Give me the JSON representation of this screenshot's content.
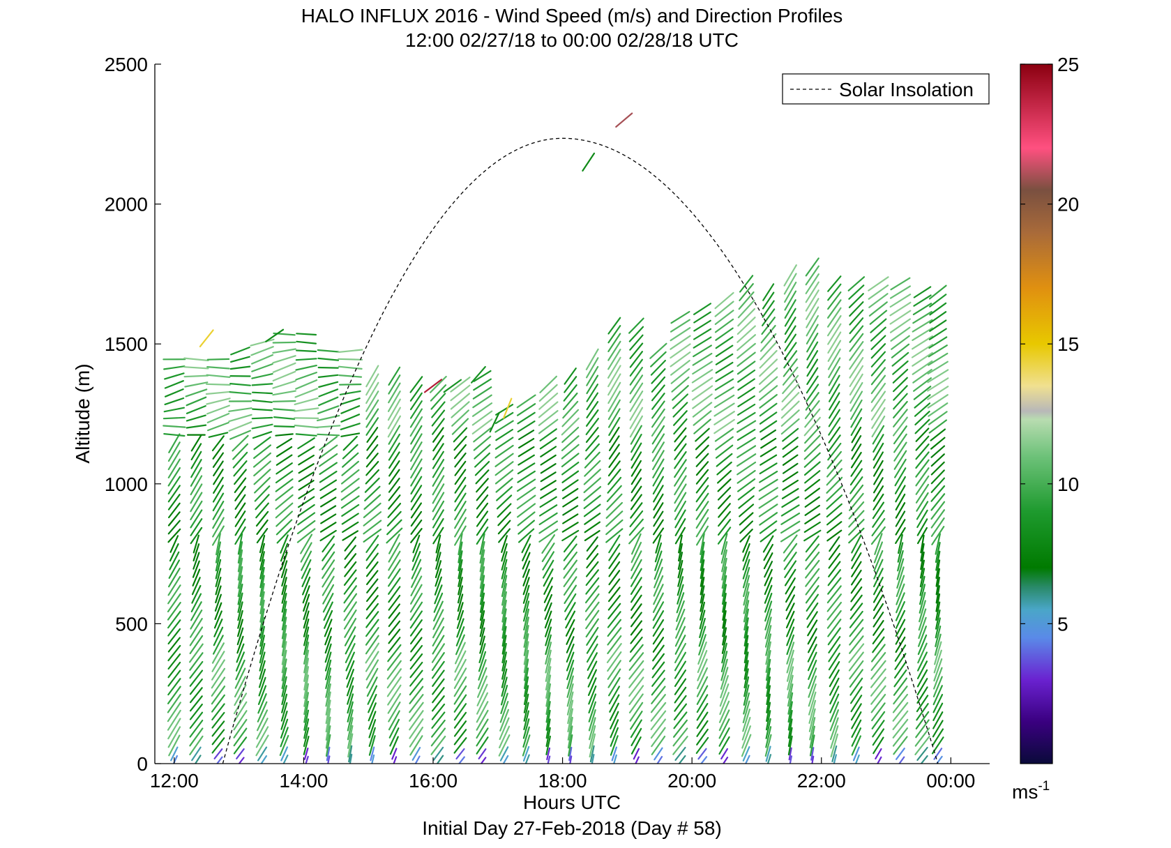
{
  "chart_data": {
    "type": "scatter",
    "title": "HALO INFLUX 2016 - Wind Speed (m/s) and Direction Profiles",
    "subtitle": "12:00 02/27/18 to 00:00 02/28/18  UTC",
    "xlabel": "Hours UTC",
    "footer": "Initial Day 27-Feb-2018 (Day # 58)",
    "ylabel": "Altitude (m)",
    "xlim": [
      11.7,
      24.6
    ],
    "ylim": [
      0,
      2500
    ],
    "x_tick_values": [
      12,
      14,
      16,
      18,
      20,
      22,
      24
    ],
    "x_tick_labels": [
      "12:00",
      "14:00",
      "16:00",
      "18:00",
      "20:00",
      "22:00",
      "00:00"
    ],
    "y_tick_values": [
      0,
      500,
      1000,
      1500,
      2000,
      2500
    ],
    "y_tick_labels": [
      "0",
      "500",
      "1000",
      "1500",
      "2000",
      "2500"
    ],
    "colorbar": {
      "min": 0,
      "max": 25,
      "tick_values": [
        5,
        10,
        15,
        20,
        25
      ],
      "tick_labels": [
        "5",
        "10",
        "15",
        "20",
        "25"
      ],
      "unit_label": "ms",
      "unit_exponent": "-1",
      "stops": [
        {
          "v": 0,
          "color": "#0a0a3a"
        },
        {
          "v": 1.5,
          "color": "#3a0080"
        },
        {
          "v": 3,
          "color": "#6a22d0"
        },
        {
          "v": 4.5,
          "color": "#5a8ae8"
        },
        {
          "v": 5.5,
          "color": "#4aa6c8"
        },
        {
          "v": 6.3,
          "color": "#2a8a6a"
        },
        {
          "v": 7,
          "color": "#007a00"
        },
        {
          "v": 9,
          "color": "#1e9a2e"
        },
        {
          "v": 11,
          "color": "#6ec27a"
        },
        {
          "v": 12.3,
          "color": "#b8dcb0"
        },
        {
          "v": 12.6,
          "color": "#b8b8b8"
        },
        {
          "v": 13.5,
          "color": "#f0e090"
        },
        {
          "v": 15,
          "color": "#e8c800"
        },
        {
          "v": 17,
          "color": "#e09010"
        },
        {
          "v": 19,
          "color": "#a86a3a"
        },
        {
          "v": 20.5,
          "color": "#7a5040"
        },
        {
          "v": 22,
          "color": "#ff5080"
        },
        {
          "v": 25,
          "color": "#8b0010"
        }
      ]
    },
    "legend": {
      "position": "top-right",
      "entries": [
        "Solar Insolation"
      ]
    },
    "solar_insolation": {
      "x_start": 12.75,
      "x_peak": 18.0,
      "x_end": 23.8,
      "peak_altitude": 2235
    },
    "profile_times": [
      12.0,
      12.34,
      12.68,
      13.02,
      13.36,
      13.7,
      14.04,
      14.38,
      14.72,
      15.06,
      15.4,
      15.74,
      16.08,
      16.42,
      16.76,
      17.1,
      17.44,
      17.78,
      18.12,
      18.46,
      18.8,
      19.14,
      19.48,
      19.82,
      20.16,
      20.5,
      20.84,
      21.18,
      21.52,
      21.86,
      22.2,
      22.54,
      22.88,
      23.22,
      23.56,
      23.8
    ],
    "profile_tops": [
      1470,
      1460,
      1460,
      1500,
      1520,
      1540,
      1540,
      1490,
      1490,
      1410,
      1410,
      1370,
      1370,
      1370,
      1410,
      1290,
      1300,
      1370,
      1400,
      1450,
      1580,
      1580,
      1500,
      1620,
      1640,
      1680,
      1740,
      1700,
      1750,
      1780,
      1740,
      1740,
      1740,
      1740,
      1700,
      1700
    ],
    "altitude_step": 30,
    "wind_barbs": {
      "speed_levels_ms": [
        {
          "max_alt": 60,
          "speed": 4.5
        },
        {
          "max_alt": 400,
          "speed": 9.5
        },
        {
          "max_alt": 1200,
          "speed": 8.5
        },
        {
          "max_alt": 2500,
          "speed": 10
        }
      ],
      "isolated": [
        {
          "x": 12.5,
          "y": 1520,
          "speed": 14.5
        },
        {
          "x": 16.0,
          "y": 1350,
          "speed": 24
        },
        {
          "x": 16.3,
          "y": 1350,
          "speed": 8.5
        },
        {
          "x": 16.7,
          "y": 1390,
          "speed": 8.5
        },
        {
          "x": 16.95,
          "y": 1220,
          "speed": 8
        },
        {
          "x": 17.15,
          "y": 1270,
          "speed": 14.5
        },
        {
          "x": 18.4,
          "y": 2150,
          "speed": 8
        },
        {
          "x": 18.95,
          "y": 2300,
          "speed": 21
        },
        {
          "x": 13.55,
          "y": 1530,
          "speed": 8
        }
      ]
    }
  }
}
